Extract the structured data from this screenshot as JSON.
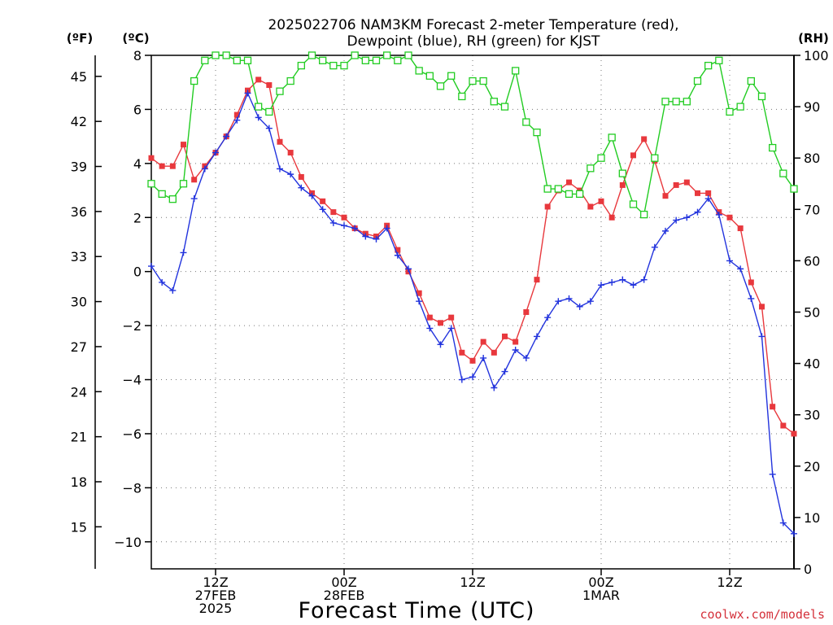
{
  "chart_data": {
    "type": "line",
    "title": "2025022706 NAM3KM Forecast 2-meter Temperature (red),",
    "title_line2": "Dewpoint (blue), RH (green) for KJST",
    "xlabel": "Forecast Time (UTC)",
    "left_axis_label_f": "(ºF)",
    "left_axis_label_c": "(ºC)",
    "right_axis_label": "(RH)",
    "ylim_c": [
      -11,
      8
    ],
    "ylim_rh": [
      0,
      100
    ],
    "xlim_hours": [
      0,
      60
    ],
    "grid": true,
    "yticks_c": [
      8,
      6,
      4,
      2,
      0,
      -2,
      -4,
      -6,
      -8,
      -10
    ],
    "yticks_c_labels": [
      "8",
      "6",
      "4",
      "2",
      "0",
      "−2",
      "−4",
      "−6",
      "−8",
      "−10"
    ],
    "yticks_f": [
      45,
      42,
      39,
      36,
      33,
      30,
      27,
      24,
      21,
      18,
      15
    ],
    "yticks_f_labels": [
      "45",
      "42",
      "39",
      "36",
      "33",
      "30",
      "27",
      "24",
      "21",
      "18",
      "15"
    ],
    "yticks_rh": [
      100,
      90,
      80,
      70,
      60,
      50,
      40,
      30,
      20,
      10,
      0
    ],
    "yticks_rh_labels": [
      "100",
      "90",
      "80",
      "70",
      "60",
      "50",
      "40",
      "30",
      "20",
      "10",
      "0"
    ],
    "xticks": [
      {
        "hour": 6,
        "lines": [
          "12Z",
          "27FEB",
          "2025"
        ]
      },
      {
        "hour": 18,
        "lines": [
          "00Z",
          "28FEB"
        ]
      },
      {
        "hour": 30,
        "lines": [
          "12Z"
        ]
      },
      {
        "hour": 42,
        "lines": [
          "00Z",
          "1MAR"
        ]
      },
      {
        "hour": 54,
        "lines": [
          "12Z"
        ]
      }
    ],
    "x_hours": [
      0,
      1,
      2,
      3,
      4,
      5,
      6,
      7,
      8,
      9,
      10,
      11,
      12,
      13,
      14,
      15,
      16,
      17,
      18,
      19,
      20,
      21,
      22,
      23,
      24,
      25,
      26,
      27,
      28,
      29,
      30,
      31,
      32,
      33,
      34,
      35,
      36,
      37,
      38,
      39,
      40,
      41,
      42,
      43,
      44,
      45,
      46,
      47,
      48,
      49,
      50,
      51,
      52,
      53,
      54,
      55,
      56,
      57,
      58,
      59,
      60
    ],
    "series": [
      {
        "color": "#e8383d",
        "marker": "filled-square",
        "values": [
          4.2,
          3.9,
          3.9,
          4.7,
          3.4,
          3.9,
          4.4,
          5.0,
          5.8,
          6.7,
          7.1,
          6.9,
          4.8,
          4.4,
          3.5,
          2.9,
          2.6,
          2.2,
          2.0,
          1.6,
          1.4,
          1.3,
          1.7,
          0.8,
          0.0,
          -0.8,
          -1.7,
          -1.9,
          -1.7,
          -3.0,
          -3.3,
          -2.6,
          -3.0,
          -2.4,
          -2.6,
          -1.5,
          -0.3,
          2.4,
          3.0,
          3.3,
          3.0,
          2.4,
          2.6,
          2.0,
          3.2,
          4.3,
          4.9,
          4.1,
          2.8,
          3.2,
          3.3,
          2.9,
          2.9,
          2.2,
          2.0,
          1.6,
          -0.4,
          -1.3,
          -5.0,
          -5.7,
          -6.0
        ]
      },
      {
        "color": "#2233dd",
        "marker": "plus",
        "values": [
          0.2,
          -0.4,
          -0.7,
          0.7,
          2.7,
          3.8,
          4.4,
          5.0,
          5.6,
          6.6,
          5.7,
          5.3,
          3.8,
          3.6,
          3.1,
          2.8,
          2.3,
          1.8,
          1.7,
          1.6,
          1.3,
          1.2,
          1.6,
          0.6,
          0.1,
          -1.1,
          -2.1,
          -2.7,
          -2.1,
          -4.0,
          -3.9,
          -3.2,
          -4.3,
          -3.7,
          -2.9,
          -3.2,
          -2.4,
          -1.7,
          -1.1,
          -1.0,
          -1.3,
          -1.1,
          -0.5,
          -0.4,
          -0.3,
          -0.5,
          -0.3,
          0.9,
          1.5,
          1.9,
          2.0,
          2.2,
          2.7,
          2.1,
          0.4,
          0.1,
          -1.0,
          -2.4,
          -7.5,
          -9.3,
          -9.7
        ]
      },
      {
        "color": "#22cc22",
        "marker": "open-square",
        "values": [
          75,
          73,
          72,
          75,
          95,
          99,
          100,
          100,
          99,
          99,
          90,
          89,
          93,
          95,
          98,
          100,
          99,
          98,
          98,
          100,
          99,
          99,
          100,
          99,
          100,
          97,
          96,
          94,
          96,
          92,
          95,
          95,
          91,
          90,
          97,
          87,
          85,
          74,
          74,
          73,
          73,
          78,
          80,
          84,
          77,
          71,
          69,
          80,
          91,
          91,
          91,
          95,
          98,
          99,
          89,
          90,
          95,
          92,
          82,
          77,
          74
        ]
      }
    ]
  },
  "footer": {
    "credit": "coolwx.com/models"
  },
  "colors": {
    "grid": "#777777",
    "credit": "#d4303a"
  }
}
